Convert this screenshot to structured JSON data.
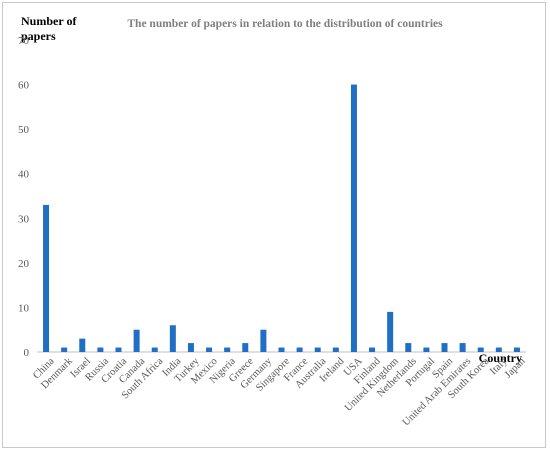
{
  "chart_data": {
    "type": "bar",
    "title": "The number of papers in relation to the distribution of countries",
    "ylabel_lines": [
      "Number of",
      "papers"
    ],
    "xlabel": "Country",
    "ylim": [
      0,
      70
    ],
    "yticks": [
      0,
      10,
      20,
      30,
      40,
      50,
      60,
      70
    ],
    "grid": false,
    "legend": "none",
    "bar_color": "#1f6fc4",
    "categories": [
      "China",
      "Denmark",
      "Israel",
      "Russia",
      "Croatia",
      "Canada",
      "South Africa",
      "India",
      "Turkey",
      "Mexico",
      "Nigeria",
      "Greece",
      "Germany",
      "Singapore",
      "France",
      "Australia",
      "Ireland",
      "USA",
      "Finland",
      "United Kingdom",
      "Netherlands",
      "Portugal",
      "Spain",
      "United Arab Emirates",
      "South Korea",
      "Italy",
      "Japan"
    ],
    "values": [
      33,
      1,
      3,
      1,
      1,
      5,
      1,
      6,
      2,
      1,
      1,
      2,
      5,
      1,
      1,
      1,
      1,
      60,
      1,
      9,
      2,
      1,
      2,
      2,
      1,
      1,
      1
    ]
  }
}
